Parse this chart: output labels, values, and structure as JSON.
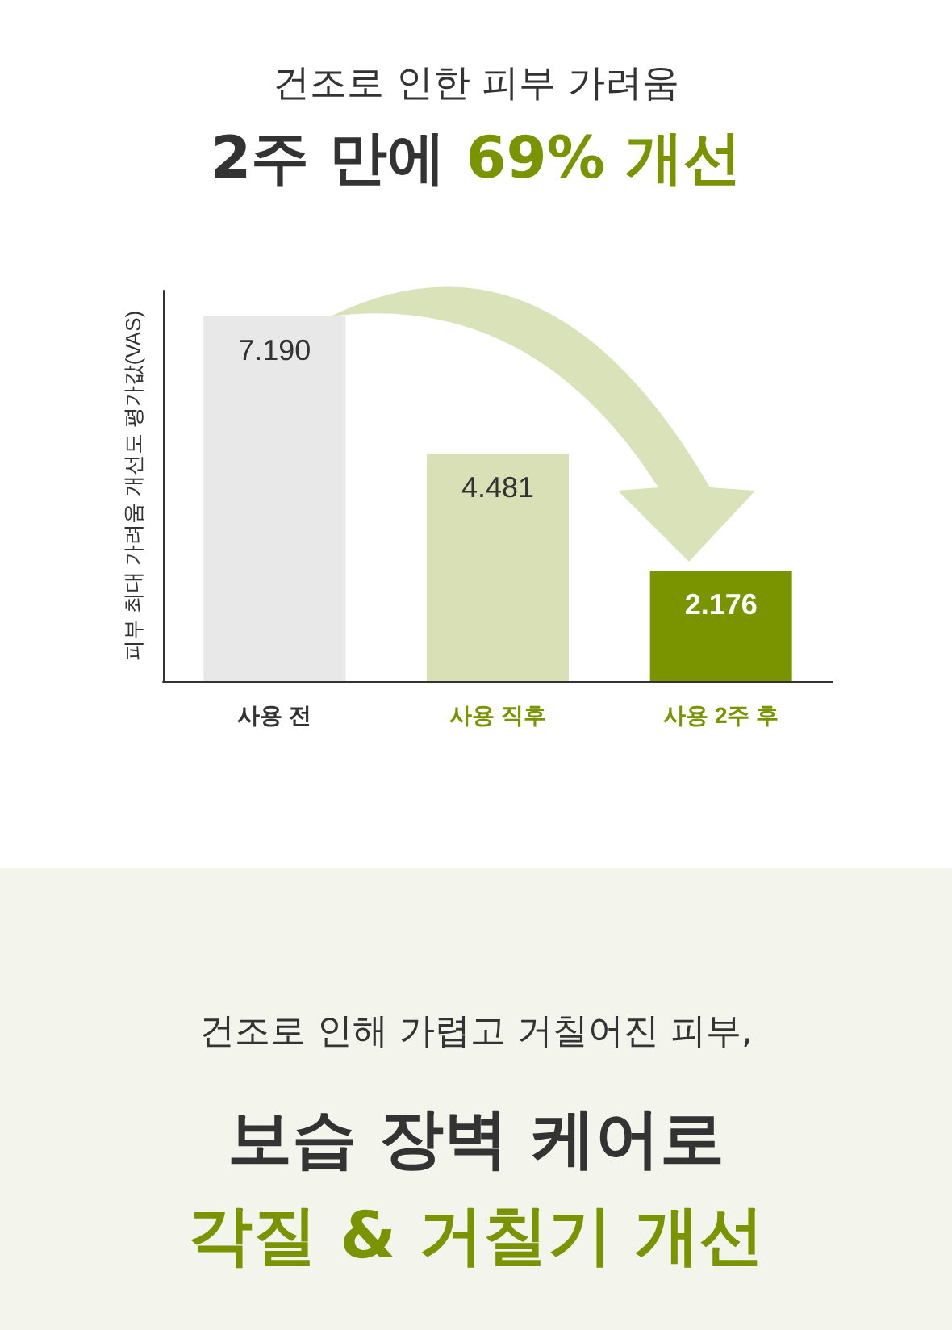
{
  "chart_data": {
    "type": "bar",
    "title": "건조로 인한 피부 가려움",
    "subtitle": "2주 만에 69% 개선",
    "ylabel": "피부 최대 가려움 개선도 평가값(VAS)",
    "categories": [
      "사용 전",
      "사용 직후",
      "사용 2주 후"
    ],
    "values": [
      7.19,
      4.481,
      2.176
    ],
    "value_labels": [
      "7.190",
      "4.481",
      "2.176"
    ],
    "colors": [
      "#e8e8e8",
      "#d9e0b5",
      "#7a9400"
    ],
    "ylim": [
      0,
      7.7
    ],
    "annotations": [
      "건조로 인해 가렵고 거칠어진 피부,",
      "보습 장벽 케어로",
      "각질 & 거칠기 개선"
    ]
  }
}
